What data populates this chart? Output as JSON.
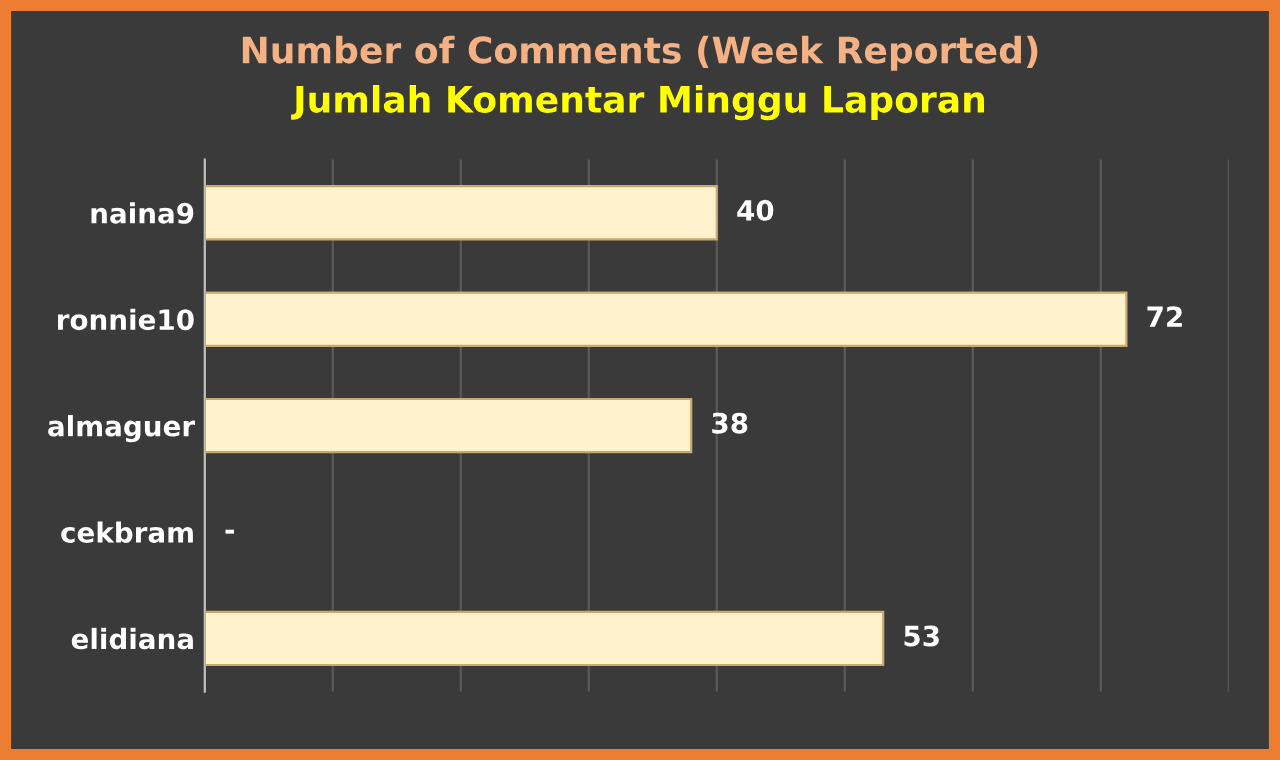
{
  "chart_data": {
    "type": "bar",
    "orientation": "horizontal",
    "title": "Number of Comments (Week Reported)",
    "subtitle": "Jumlah Komentar Minggu Laporan",
    "categories": [
      "naina9",
      "ronnie10",
      "almaguer",
      "cekbram",
      "elidiana"
    ],
    "values": [
      40,
      72,
      38,
      0,
      53
    ],
    "value_labels": [
      "40",
      "72",
      "38",
      "-",
      "53"
    ],
    "color": "#fff2cc",
    "xlim": [
      0,
      80
    ],
    "xticks": [
      {
        "value": 0,
        "label": null
      },
      {
        "value": 10,
        "label": null
      },
      {
        "value": 20,
        "label": null
      },
      {
        "value": 30,
        "label": null
      },
      {
        "value": 40,
        "label": null
      },
      {
        "value": 50,
        "label": null
      },
      {
        "value": 60,
        "label": null
      },
      {
        "value": 70,
        "label": null
      },
      {
        "value": 80,
        "label": null
      }
    ],
    "tick_labels": "y",
    "grid": "x",
    "legend": false
  }
}
